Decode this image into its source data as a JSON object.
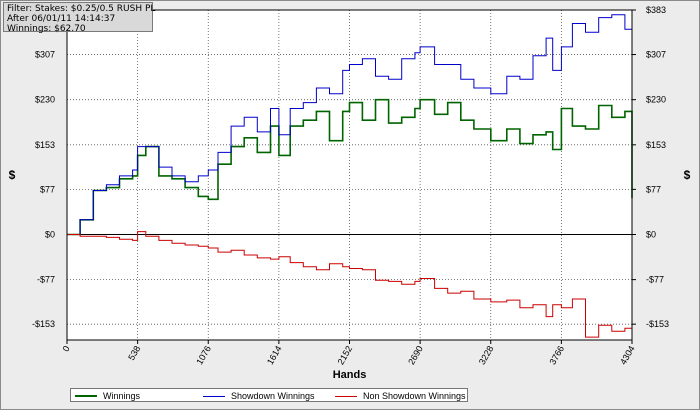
{
  "info": {
    "line1": "Filter: Stakes: $0.25/0.5 RUSH PL",
    "line2": "After 06/01/11 14:14:37",
    "line3": "Winnings: $62.70"
  },
  "chart_data": {
    "type": "line",
    "xlabel": "Hands",
    "ylabel": "$",
    "ylim": [
      -180,
      383
    ],
    "xlim": [
      0,
      4304
    ],
    "x_ticks": [
      0,
      538,
      1076,
      1614,
      2152,
      2690,
      3228,
      3766,
      4304
    ],
    "y_ticks": [
      {
        "value": 383,
        "label": "$383",
        "right_only": true
      },
      {
        "value": 307,
        "label": "$307"
      },
      {
        "value": 230,
        "label": "$230"
      },
      {
        "value": 153,
        "label": "$153"
      },
      {
        "value": 77,
        "label": "$77"
      },
      {
        "value": 0,
        "label": "$0"
      },
      {
        "value": -77,
        "label": "-$77"
      },
      {
        "value": -153,
        "label": "-$153"
      }
    ],
    "grid": true,
    "legend_position": "bottom",
    "x": [
      0,
      100,
      200,
      300,
      400,
      500,
      538,
      600,
      700,
      800,
      900,
      1000,
      1076,
      1150,
      1250,
      1350,
      1450,
      1550,
      1614,
      1700,
      1800,
      1900,
      2000,
      2100,
      2152,
      2250,
      2350,
      2450,
      2550,
      2650,
      2690,
      2800,
      2900,
      3000,
      3100,
      3228,
      3350,
      3450,
      3550,
      3650,
      3700,
      3766,
      3850,
      3950,
      4050,
      4150,
      4250,
      4304
    ],
    "series": [
      {
        "name": "Winnings",
        "color": "#006400",
        "values": [
          0,
          25,
          75,
          80,
          95,
          100,
          135,
          150,
          100,
          95,
          80,
          65,
          60,
          120,
          150,
          165,
          140,
          185,
          135,
          185,
          195,
          210,
          160,
          210,
          225,
          195,
          230,
          190,
          200,
          215,
          230,
          205,
          225,
          195,
          180,
          160,
          180,
          155,
          170,
          175,
          145,
          215,
          185,
          180,
          220,
          200,
          210,
          62
        ]
      },
      {
        "name": "Showdown Winnings",
        "color": "#0000cc",
        "values": [
          0,
          25,
          75,
          85,
          100,
          110,
          150,
          150,
          115,
          100,
          90,
          100,
          110,
          140,
          185,
          200,
          175,
          215,
          170,
          215,
          225,
          250,
          240,
          280,
          290,
          300,
          270,
          265,
          300,
          310,
          320,
          290,
          290,
          265,
          250,
          240,
          270,
          265,
          305,
          335,
          280,
          320,
          360,
          345,
          370,
          375,
          350,
          340
        ]
      },
      {
        "name": "Non Showdown Winnings",
        "color": "#cc0000",
        "values": [
          0,
          -3,
          -3,
          -5,
          -8,
          -10,
          5,
          -3,
          -10,
          -15,
          -18,
          -20,
          -23,
          -30,
          -27,
          -35,
          -40,
          -42,
          -38,
          -48,
          -55,
          -60,
          -50,
          -55,
          -58,
          -60,
          -78,
          -80,
          -85,
          -80,
          -75,
          -92,
          -100,
          -97,
          -110,
          -115,
          -112,
          -125,
          -120,
          -140,
          -120,
          -125,
          -110,
          -175,
          -155,
          -165,
          -160,
          -165
        ]
      }
    ]
  }
}
